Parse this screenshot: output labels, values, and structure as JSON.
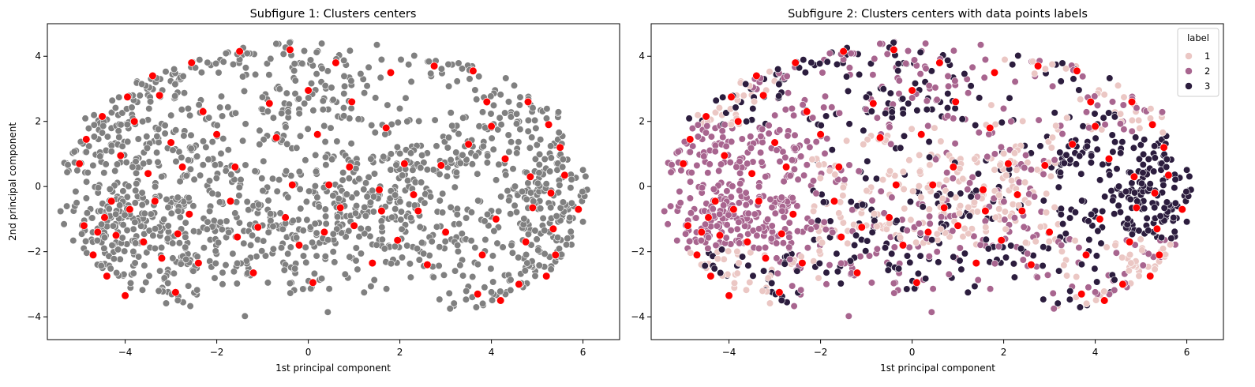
{
  "figure": {
    "panels": [
      {
        "title": "Subfigure 1: Clusters centers",
        "xlabel": "1st principal component",
        "ylabel": "2nd principal component",
        "xticks": [
          "−4",
          "−2",
          "0",
          "2",
          "4",
          "6"
        ],
        "yticks": [
          "−4",
          "−2",
          "0",
          "2",
          "4"
        ]
      },
      {
        "title": "Subfigure 2: Clusters centers with data points labels",
        "xlabel": "1st principal component",
        "ylabel": "",
        "xticks": [
          "−4",
          "−2",
          "0",
          "2",
          "4",
          "6"
        ],
        "yticks": [
          "−4",
          "−2",
          "0",
          "2",
          "4"
        ],
        "legend": {
          "title": "label",
          "entries": [
            "1",
            "2",
            "3"
          ]
        }
      }
    ]
  },
  "colors": {
    "points_gray": "#808080",
    "centers": "#ff0000",
    "label_1": "#ebc7c4",
    "label_2": "#a8658f",
    "label_3": "#2c1d3e",
    "edge": "#ffffff"
  },
  "chart_data": [
    {
      "type": "scatter",
      "title": "Subfigure 1: Clusters centers",
      "xlabel": "1st principal component",
      "ylabel": "2nd principal component",
      "xlim": [
        -5.7,
        6.8
      ],
      "ylim": [
        -4.7,
        5.0
      ],
      "grid": false,
      "series": [
        {
          "values_note": "",
          "x": [],
          "y": []
        }
      ],
      "centers": {
        "x": [
          -5.0,
          -4.9,
          -4.85,
          -4.7,
          -4.6,
          -4.5,
          -4.45,
          -4.4,
          -4.3,
          -4.2,
          -4.1,
          -4.0,
          -3.95,
          -3.9,
          -3.8,
          -3.6,
          -3.5,
          -3.4,
          -3.35,
          -3.25,
          -3.2,
          -3.0,
          -2.9,
          -2.85,
          -2.75,
          -2.6,
          -2.55,
          -2.4,
          -2.3,
          -2.0,
          -1.7,
          -1.6,
          -1.55,
          -1.5,
          -1.2,
          -1.1,
          -0.85,
          -0.7,
          -0.5,
          -0.4,
          -0.35,
          -0.2,
          0.0,
          0.1,
          0.2,
          0.35,
          0.45,
          0.6,
          0.7,
          0.9,
          0.95,
          1.0,
          1.4,
          1.55,
          1.6,
          1.7,
          1.8,
          1.95,
          2.1,
          2.3,
          2.4,
          2.6,
          2.75,
          2.9,
          3.0,
          3.5,
          3.6,
          3.7,
          3.8,
          3.9,
          4.0,
          4.1,
          4.2,
          4.3,
          4.6,
          4.75,
          4.8,
          4.85,
          4.9,
          5.2,
          5.25,
          5.3,
          5.35,
          5.4,
          5.5,
          5.6,
          5.9
        ],
        "y": [
          0.7,
          -1.2,
          1.45,
          -2.1,
          -1.4,
          2.15,
          -0.95,
          -2.75,
          -0.45,
          -1.5,
          0.95,
          -3.35,
          2.75,
          -0.7,
          2.0,
          -1.7,
          0.4,
          3.4,
          -0.45,
          2.8,
          -2.2,
          1.35,
          -3.25,
          -1.45,
          0.6,
          -0.85,
          3.8,
          -2.35,
          2.3,
          1.6,
          -0.45,
          0.6,
          -1.55,
          4.15,
          -2.65,
          -1.25,
          2.55,
          1.5,
          -0.95,
          4.2,
          0.05,
          -1.8,
          2.95,
          -2.95,
          1.6,
          -1.4,
          0.05,
          3.8,
          -0.65,
          0.6,
          2.6,
          -1.2,
          -2.35,
          -0.1,
          -0.75,
          1.8,
          3.5,
          -1.65,
          0.7,
          -0.25,
          -0.75,
          -2.4,
          3.7,
          0.65,
          -1.4,
          1.3,
          3.55,
          -3.3,
          -2.1,
          2.6,
          1.85,
          -1.0,
          -3.5,
          0.85,
          -3.0,
          -1.7,
          2.6,
          0.3,
          -0.65,
          -2.75,
          1.9,
          -0.2,
          -1.3,
          -2.1,
          1.2,
          0.35,
          -0.7
        ]
      }
    },
    {
      "type": "scatter",
      "title": "Subfigure 2: Clusters centers with data points labels",
      "xlabel": "1st principal component",
      "ylabel": "",
      "xlim": [
        -5.7,
        6.8
      ],
      "ylim": [
        -4.7,
        5.0
      ],
      "grid": false,
      "legend": {
        "title": "label",
        "position": "top-right",
        "entries": [
          "1",
          "2",
          "3"
        ]
      },
      "centers": {
        "same_as_panel": 1
      }
    }
  ]
}
